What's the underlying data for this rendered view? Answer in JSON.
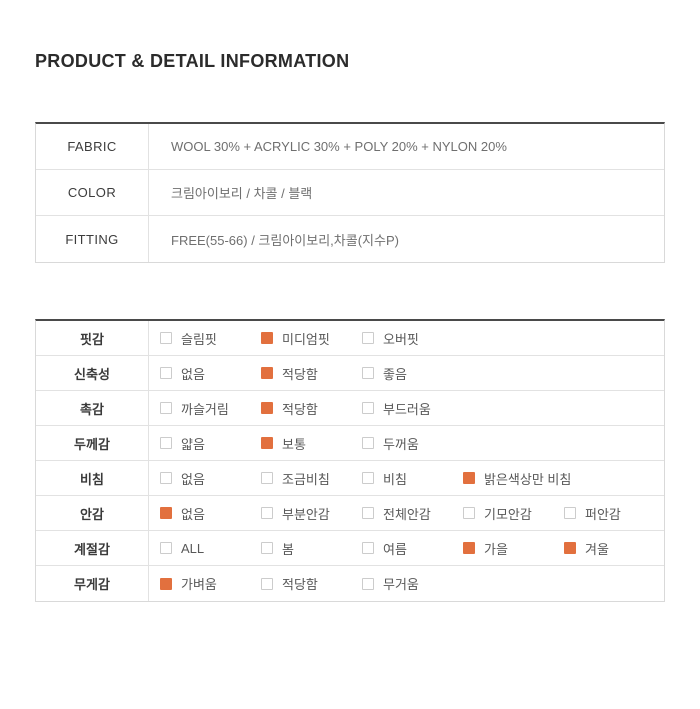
{
  "page": {
    "title": "PRODUCT & DETAIL INFORMATION"
  },
  "colors": {
    "accent": "#E2703E"
  },
  "info_table": {
    "rows": [
      {
        "label": "FABRIC",
        "value": "WOOL 30% + ACRYLIC 30% + POLY 20% + NYLON 20%"
      },
      {
        "label": "COLOR",
        "value": "크림아이보리 / 차콜 / 블랙"
      },
      {
        "label": "FITTING",
        "value": "FREE(55-66) / 크림아이보리,차콜(지수P)"
      }
    ]
  },
  "detail_table": {
    "rows": [
      {
        "label": "핏감",
        "options": [
          {
            "label": "슬림핏",
            "checked": false
          },
          {
            "label": "미디엄핏",
            "checked": true
          },
          {
            "label": "오버핏",
            "checked": false
          }
        ]
      },
      {
        "label": "신축성",
        "options": [
          {
            "label": "없음",
            "checked": false
          },
          {
            "label": "적당함",
            "checked": true
          },
          {
            "label": "좋음",
            "checked": false
          }
        ]
      },
      {
        "label": "촉감",
        "options": [
          {
            "label": "까슬거림",
            "checked": false
          },
          {
            "label": "적당함",
            "checked": true
          },
          {
            "label": "부드러움",
            "checked": false
          }
        ]
      },
      {
        "label": "두께감",
        "options": [
          {
            "label": "얇음",
            "checked": false
          },
          {
            "label": "보통",
            "checked": true
          },
          {
            "label": "두꺼움",
            "checked": false
          }
        ]
      },
      {
        "label": "비침",
        "options": [
          {
            "label": "없음",
            "checked": false
          },
          {
            "label": "조금비침",
            "checked": false
          },
          {
            "label": "비침",
            "checked": false
          },
          {
            "label": "밝은색상만 비침",
            "checked": true
          }
        ]
      },
      {
        "label": "안감",
        "options": [
          {
            "label": "없음",
            "checked": true
          },
          {
            "label": "부분안감",
            "checked": false
          },
          {
            "label": "전체안감",
            "checked": false
          },
          {
            "label": "기모안감",
            "checked": false
          },
          {
            "label": "퍼안감",
            "checked": false
          }
        ]
      },
      {
        "label": "계절감",
        "options": [
          {
            "label": "ALL",
            "checked": false
          },
          {
            "label": "봄",
            "checked": false
          },
          {
            "label": "여름",
            "checked": false
          },
          {
            "label": "가을",
            "checked": true
          },
          {
            "label": "겨울",
            "checked": true
          }
        ]
      },
      {
        "label": "무게감",
        "options": [
          {
            "label": "가벼움",
            "checked": true
          },
          {
            "label": "적당함",
            "checked": false
          },
          {
            "label": "무거움",
            "checked": false
          }
        ]
      }
    ]
  }
}
